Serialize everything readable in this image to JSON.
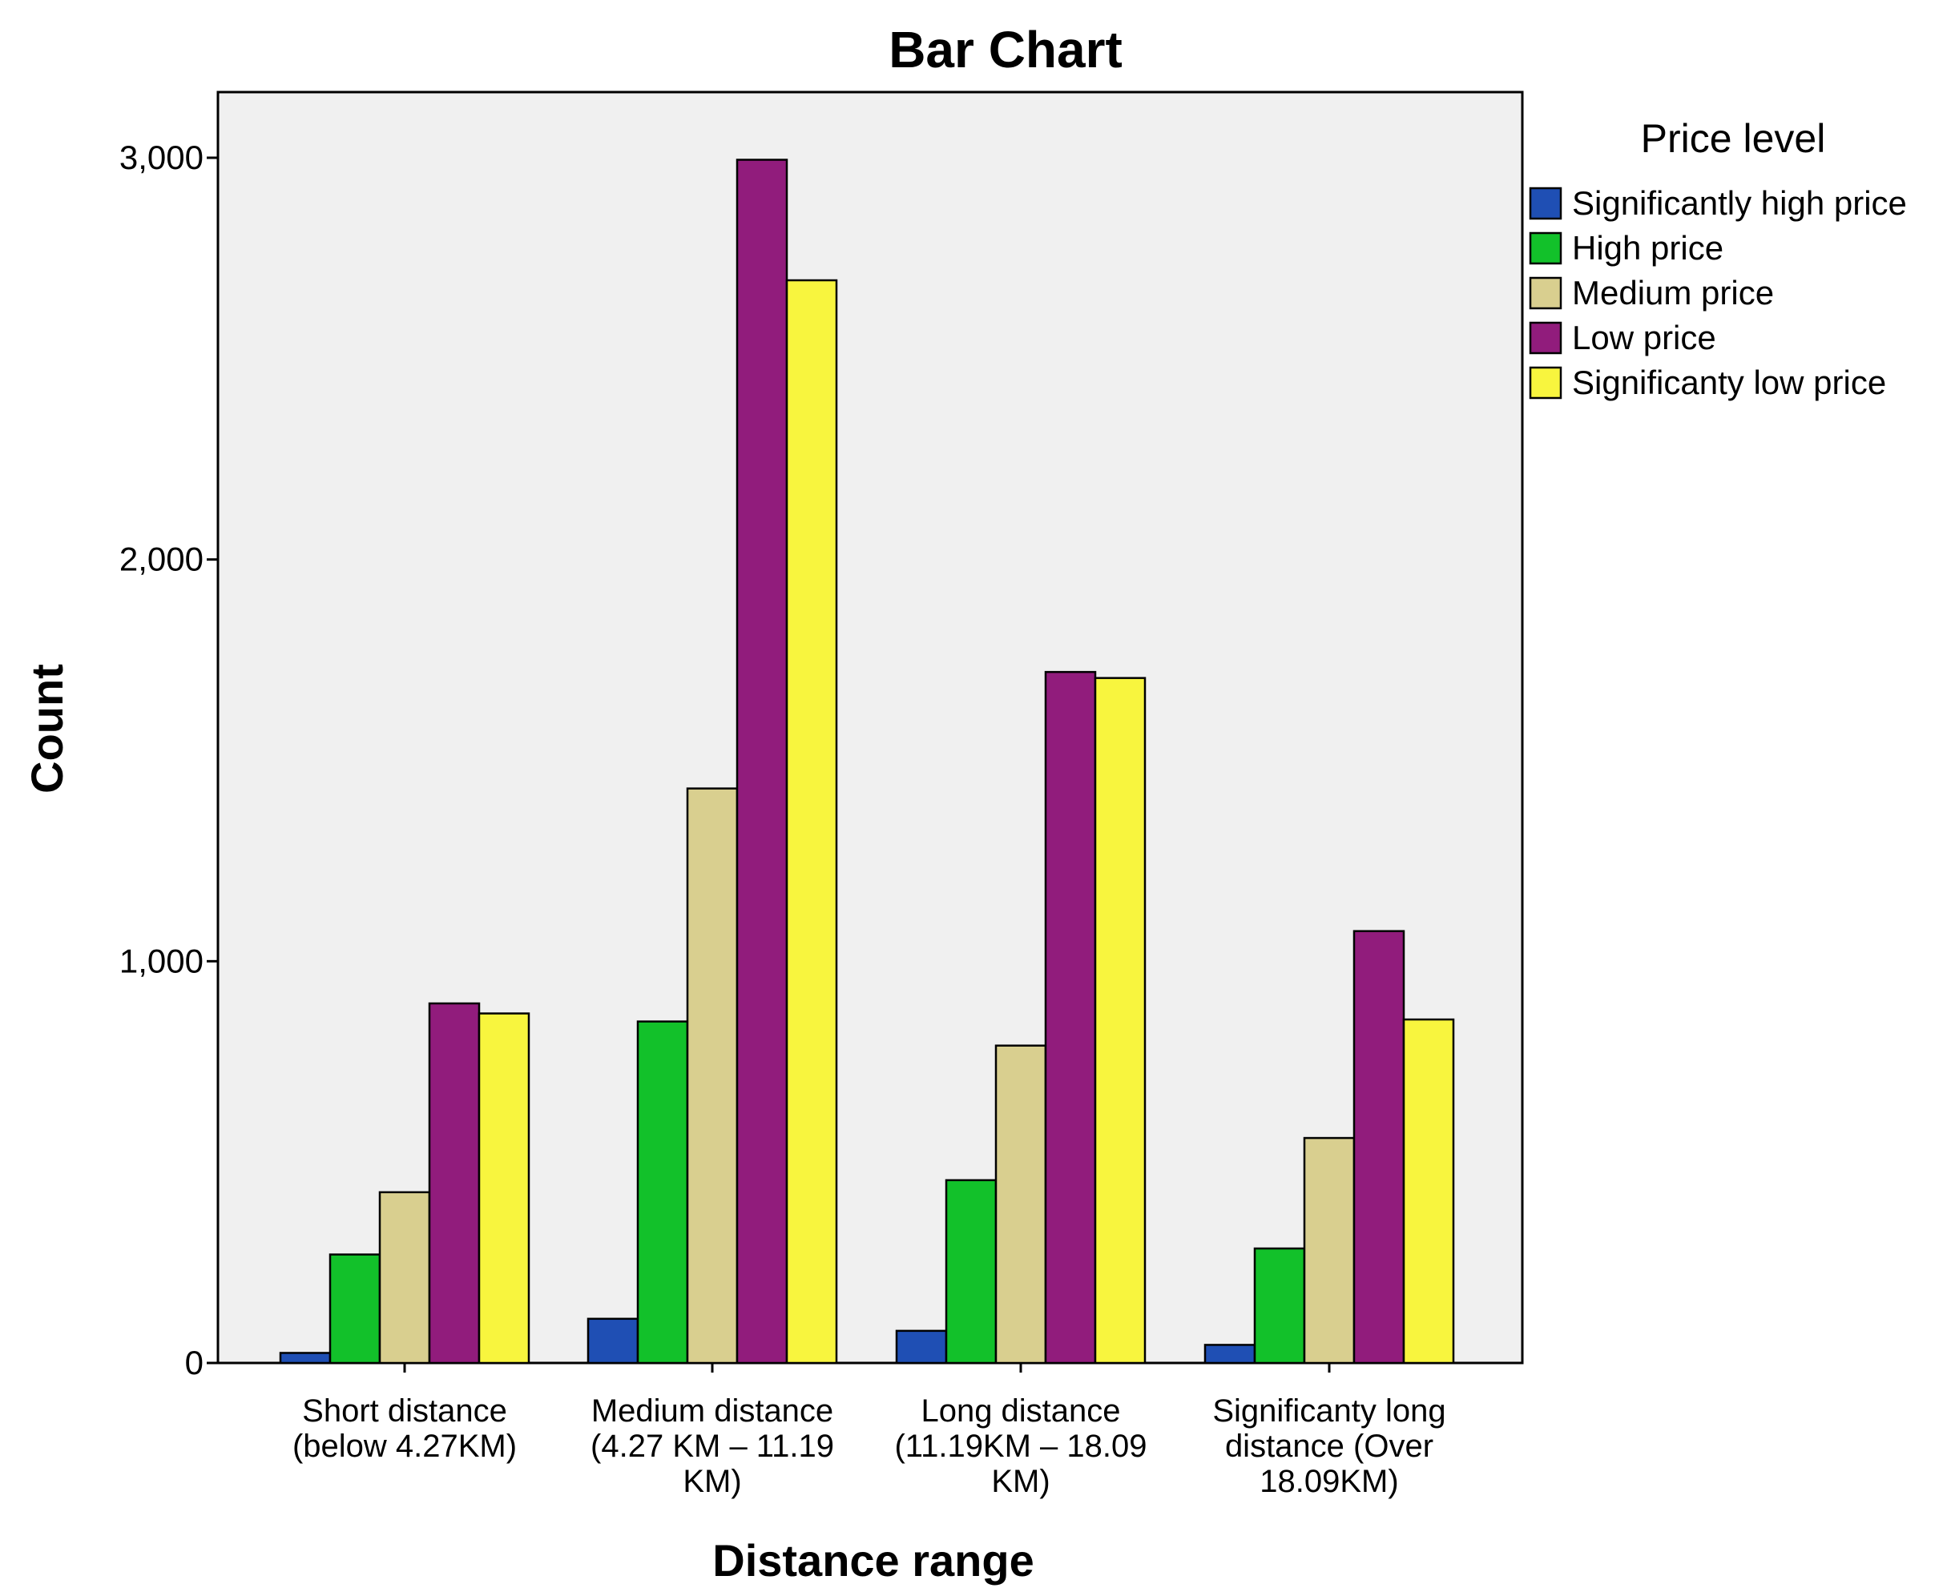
{
  "chart_data": {
    "type": "bar",
    "title": "Bar Chart",
    "xlabel": "Distance range",
    "ylabel": "Count",
    "ylim": [
      0,
      3000
    ],
    "yticks": [
      0,
      1000,
      2000,
      3000
    ],
    "ytick_labels": [
      "0",
      "1,000",
      "2,000",
      "3,000"
    ],
    "categories": [
      [
        "Short distance",
        "(below 4.27KM)"
      ],
      [
        "Medium distance",
        "(4.27 KM – 11.19",
        "KM)"
      ],
      [
        "Long distance",
        "(11.19KM – 18.09",
        "KM)"
      ],
      [
        "Significanty long",
        "distance (Over",
        "18.09KM)"
      ]
    ],
    "legend_title": "Price level",
    "legend_position": "right",
    "grid": false,
    "plot_background": "#f0f0f0",
    "series": [
      {
        "name": "Significantly high price",
        "color": "#1f4fb4",
        "values": [
          25,
          110,
          80,
          45
        ]
      },
      {
        "name": "High price",
        "color": "#12c12a",
        "values": [
          270,
          850,
          455,
          285
        ]
      },
      {
        "name": "Medium price",
        "color": "#d9cf8f",
        "values": [
          425,
          1430,
          790,
          560
        ]
      },
      {
        "name": "Low price",
        "color": "#911c7c",
        "values": [
          895,
          2995,
          1720,
          1075
        ]
      },
      {
        "name": "Significanty low price",
        "color": "#f8f53e",
        "values": [
          870,
          2695,
          1705,
          855
        ]
      }
    ]
  }
}
